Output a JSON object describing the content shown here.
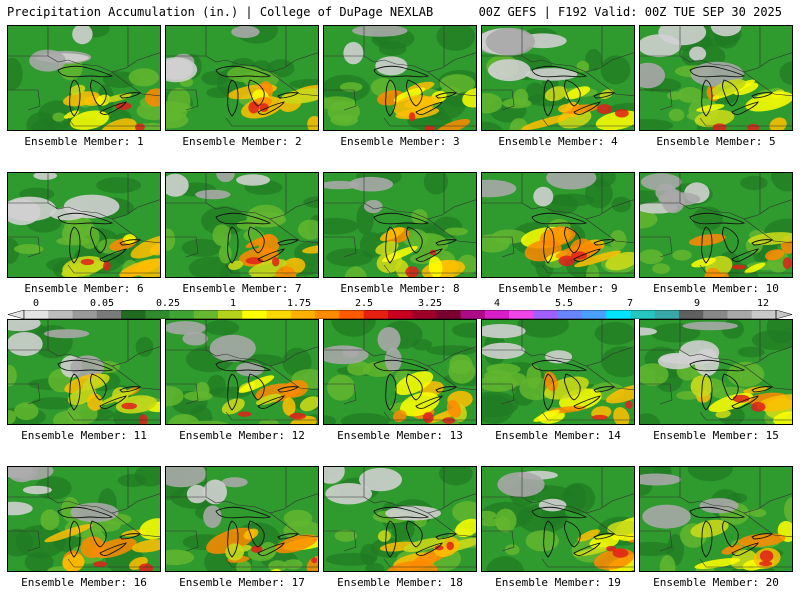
{
  "header": {
    "left": "Precipitation Accumulation (in.) | College of DuPage NEXLAB",
    "right": "00Z GEFS | F192 Valid: 00Z TUE SEP 30 2025"
  },
  "colorbar": {
    "tick_labels": [
      "0",
      "0.05",
      "0.25",
      "1",
      "1.75",
      "2.5",
      "3.25",
      "4",
      "5.5",
      "7",
      "9",
      "12"
    ],
    "colors": [
      "#e4e4e4",
      "#bdbdbd",
      "#9a9a9a",
      "#7a7a7a",
      "#206a21",
      "#2e8a2c",
      "#3ea535",
      "#66b92e",
      "#b5d31a",
      "#ffff00",
      "#ffd800",
      "#ffb000",
      "#ff8a00",
      "#ff5a00",
      "#e52010",
      "#c8001e",
      "#a00028",
      "#7a0030",
      "#ad0a8a",
      "#d81ec8",
      "#f046e8",
      "#a060ff",
      "#6a84ff",
      "#4aa0ff",
      "#00e4ff",
      "#25c6c0",
      "#38a8a8",
      "#606060",
      "#888888",
      "#a8a8a8",
      "#c8c8c8"
    ]
  },
  "panels": [
    {
      "label": "Ensemble Member: 1"
    },
    {
      "label": "Ensemble Member: 2"
    },
    {
      "label": "Ensemble Member: 3"
    },
    {
      "label": "Ensemble Member: 4"
    },
    {
      "label": "Ensemble Member: 5"
    },
    {
      "label": "Ensemble Member: 6"
    },
    {
      "label": "Ensemble Member: 7"
    },
    {
      "label": "Ensemble Member: 8"
    },
    {
      "label": "Ensemble Member: 9"
    },
    {
      "label": "Ensemble Member: 10"
    },
    {
      "label": "Ensemble Member: 11"
    },
    {
      "label": "Ensemble Member: 12"
    },
    {
      "label": "Ensemble Member: 13"
    },
    {
      "label": "Ensemble Member: 14"
    },
    {
      "label": "Ensemble Member: 15"
    },
    {
      "label": "Ensemble Member: 16"
    },
    {
      "label": "Ensemble Member: 17"
    },
    {
      "label": "Ensemble Member: 18"
    },
    {
      "label": "Ensemble Member: 19"
    },
    {
      "label": "Ensemble Member: 20"
    }
  ]
}
